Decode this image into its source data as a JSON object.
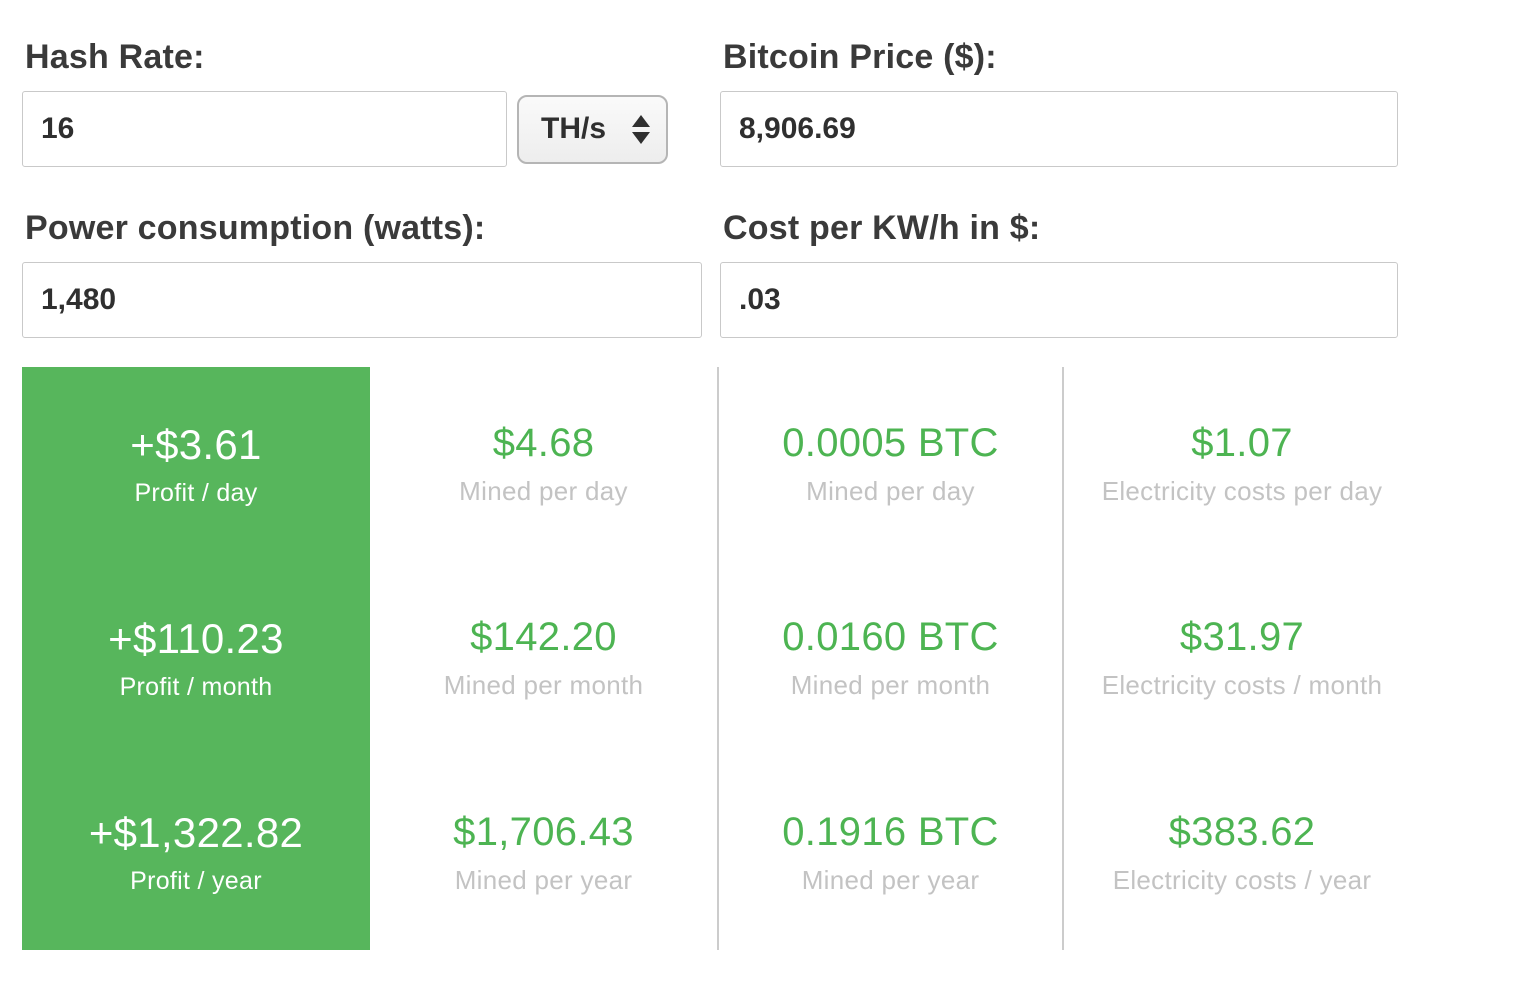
{
  "colors": {
    "green_panel": "#57b65c",
    "green_text": "#4db452",
    "muted_label": "#c3c3c3",
    "divider": "#cccccc"
  },
  "form": {
    "hash_rate": {
      "label": "Hash Rate:",
      "value": "16",
      "unit_selected": "TH/s"
    },
    "bitcoin_price": {
      "label": "Bitcoin Price ($):",
      "value": "8,906.69"
    },
    "power_consumption": {
      "label": "Power consumption (watts):",
      "value": "1,480"
    },
    "cost_per_kwh": {
      "label": "Cost per KW/h in $:",
      "value": ".03"
    }
  },
  "results": {
    "profit": {
      "rows": [
        {
          "value": "+$3.61",
          "label": "Profit / day"
        },
        {
          "value": "+$110.23",
          "label": "Profit / month"
        },
        {
          "value": "+$1,322.82",
          "label": "Profit / year"
        }
      ]
    },
    "mined_usd": {
      "rows": [
        {
          "value": "$4.68",
          "label": "Mined per day"
        },
        {
          "value": "$142.20",
          "label": "Mined per month"
        },
        {
          "value": "$1,706.43",
          "label": "Mined per year"
        }
      ]
    },
    "mined_btc": {
      "rows": [
        {
          "value": "0.0005 BTC",
          "label": "Mined per day"
        },
        {
          "value": "0.0160 BTC",
          "label": "Mined per month"
        },
        {
          "value": "0.1916 BTC",
          "label": "Mined per year"
        }
      ]
    },
    "electricity": {
      "rows": [
        {
          "value": "$1.07",
          "label": "Electricity costs per day"
        },
        {
          "value": "$31.97",
          "label": "Electricity costs / month"
        },
        {
          "value": "$383.62",
          "label": "Electricity costs / year"
        }
      ]
    }
  }
}
